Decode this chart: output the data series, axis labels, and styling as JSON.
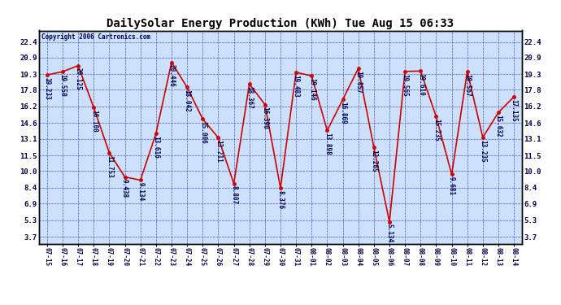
{
  "title": "DailySolar Energy Production (KWh) Tue Aug 15 06:33",
  "copyright": "Copyright 2006 Cartronics.com",
  "dates": [
    "07-15",
    "07-16",
    "07-17",
    "07-18",
    "07-19",
    "07-20",
    "07-21",
    "07-22",
    "07-23",
    "07-24",
    "07-25",
    "07-26",
    "07-27",
    "07-28",
    "07-29",
    "07-30",
    "07-31",
    "08-01",
    "08-02",
    "08-03",
    "08-04",
    "08-05",
    "08-06",
    "08-07",
    "08-08",
    "08-09",
    "08-10",
    "08-11",
    "08-12",
    "08-13",
    "08-14"
  ],
  "values": [
    19.233,
    19.55,
    20.125,
    16.1,
    11.753,
    9.438,
    9.134,
    13.616,
    20.446,
    18.042,
    15.006,
    13.211,
    8.807,
    18.367,
    16.39,
    8.376,
    19.483,
    19.146,
    13.898,
    16.869,
    19.857,
    12.265,
    5.134,
    19.565,
    19.61,
    15.235,
    9.681,
    19.567,
    13.235,
    15.632,
    17.135
  ],
  "line_color": "#CC0000",
  "marker_color": "#CC0000",
  "bg_color": "#FFFFFF",
  "plot_bg_color": "#CCE0FF",
  "grid_color": "#3333BB",
  "border_color": "#000000",
  "title_color": "#000000",
  "label_color": "#000044",
  "yticks": [
    3.7,
    5.3,
    6.9,
    8.4,
    10.0,
    11.5,
    13.1,
    14.6,
    16.2,
    17.8,
    19.3,
    20.9,
    22.4
  ],
  "ylim": [
    3.0,
    23.5
  ],
  "title_fontsize": 10,
  "annot_fontsize": 5.5,
  "copyright_fontsize": 5.5,
  "xtick_fontsize": 5.5,
  "ytick_fontsize": 6.5
}
